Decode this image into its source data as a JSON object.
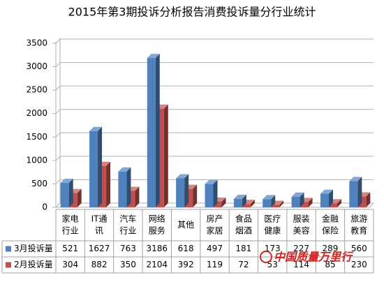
{
  "chart_data": {
    "type": "bar3d",
    "title": "2015年第3期投诉分析报告消费投诉量分行业统计",
    "categories": [
      [
        "家电",
        "行业"
      ],
      [
        "IT通",
        "讯"
      ],
      [
        "汽车",
        "行业"
      ],
      [
        "网络",
        "服务"
      ],
      [
        "其他"
      ],
      [
        "房产",
        "家居"
      ],
      [
        "食品",
        "烟酒"
      ],
      [
        "医疗",
        "健康"
      ],
      [
        "服装",
        "美容"
      ],
      [
        "金融",
        "保险"
      ],
      [
        "旅游",
        "教育"
      ]
    ],
    "series": [
      {
        "name": "3月投诉量",
        "color": "#4f81bd",
        "values": [
          521,
          1627,
          763,
          3186,
          618,
          497,
          181,
          173,
          227,
          289,
          560
        ]
      },
      {
        "name": "2月投诉量",
        "color": "#c0504d",
        "values": [
          304,
          882,
          350,
          2104,
          392,
          119,
          72,
          53,
          114,
          85,
          230
        ]
      }
    ],
    "ylim": [
      0,
      3500
    ],
    "yticks": [
      0,
      500,
      1000,
      1500,
      2000,
      2500,
      3000,
      3500
    ],
    "grid": true,
    "watermark": "中国质量万里行"
  }
}
